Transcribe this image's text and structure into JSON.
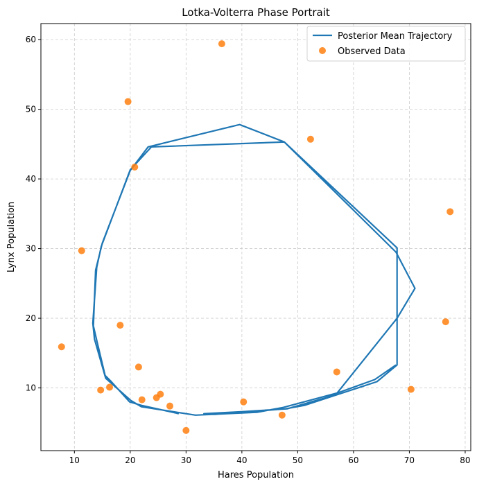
{
  "chart_data": {
    "type": "line",
    "title": "Lotka-Volterra Phase Portrait",
    "xlabel": "Hares Population",
    "ylabel": "Lynx Population",
    "xlim": [
      4,
      81
    ],
    "ylim": [
      1,
      62.3
    ],
    "xticks": [
      10,
      20,
      30,
      40,
      50,
      60,
      70,
      80
    ],
    "yticks": [
      10,
      20,
      30,
      40,
      50,
      60
    ],
    "grid": true,
    "legend_position": "top-right",
    "colors": {
      "line": "#1f77b4",
      "points": "#ff7f0e",
      "grid": "#cccccc"
    },
    "series": [
      {
        "name": "Posterior Mean Trajectory",
        "kind": "line",
        "x": [
          28.7,
          22.0,
          19.9,
          16.5,
          15.5,
          14.1,
          13.4,
          13.8,
          15.0,
          20.0,
          23.2,
          39.6,
          47.6,
          67.8,
          67.8,
          64.2,
          51.2,
          47.8,
          35.2,
          33.2,
          40.2,
          48.1,
          56.8,
          67.8,
          71.0,
          67.6,
          47.6,
          23.8,
          20.0,
          14.8,
          14.0,
          13.3,
          13.6,
          15.6,
          20.1,
          22.0,
          31.7,
          42.7,
          47.4,
          57.2,
          63.8,
          67.6
        ],
        "y": [
          6.3,
          7.5,
          8.0,
          11.0,
          11.8,
          16.5,
          18.9,
          26.9,
          30.8,
          41.2,
          44.6,
          47.8,
          45.3,
          30.1,
          13.3,
          10.9,
          7.5,
          7.0,
          6.2,
          6.3,
          6.6,
          7.0,
          9.0,
          20.0,
          24.3,
          29.5,
          45.3,
          44.6,
          41.3,
          30.3,
          27.3,
          19.3,
          17.0,
          11.4,
          8.2,
          7.3,
          6.1,
          6.5,
          7.2,
          9.3,
          11.2,
          13.3
        ]
      },
      {
        "name": "Observed Data",
        "kind": "scatter",
        "x": [
          36.4,
          19.6,
          52.3,
          20.8,
          77.3,
          11.3,
          76.5,
          18.2,
          7.7,
          21.5,
          57.0,
          70.3,
          14.7,
          16.3,
          25.4,
          24.7,
          22.1,
          27.1,
          40.3,
          47.2,
          30.0
        ],
        "y": [
          59.4,
          51.1,
          45.7,
          41.7,
          35.3,
          29.7,
          19.5,
          19.0,
          15.9,
          13.0,
          12.3,
          9.8,
          9.7,
          10.1,
          9.1,
          8.6,
          8.3,
          7.4,
          8.0,
          6.1,
          3.9
        ]
      }
    ]
  }
}
